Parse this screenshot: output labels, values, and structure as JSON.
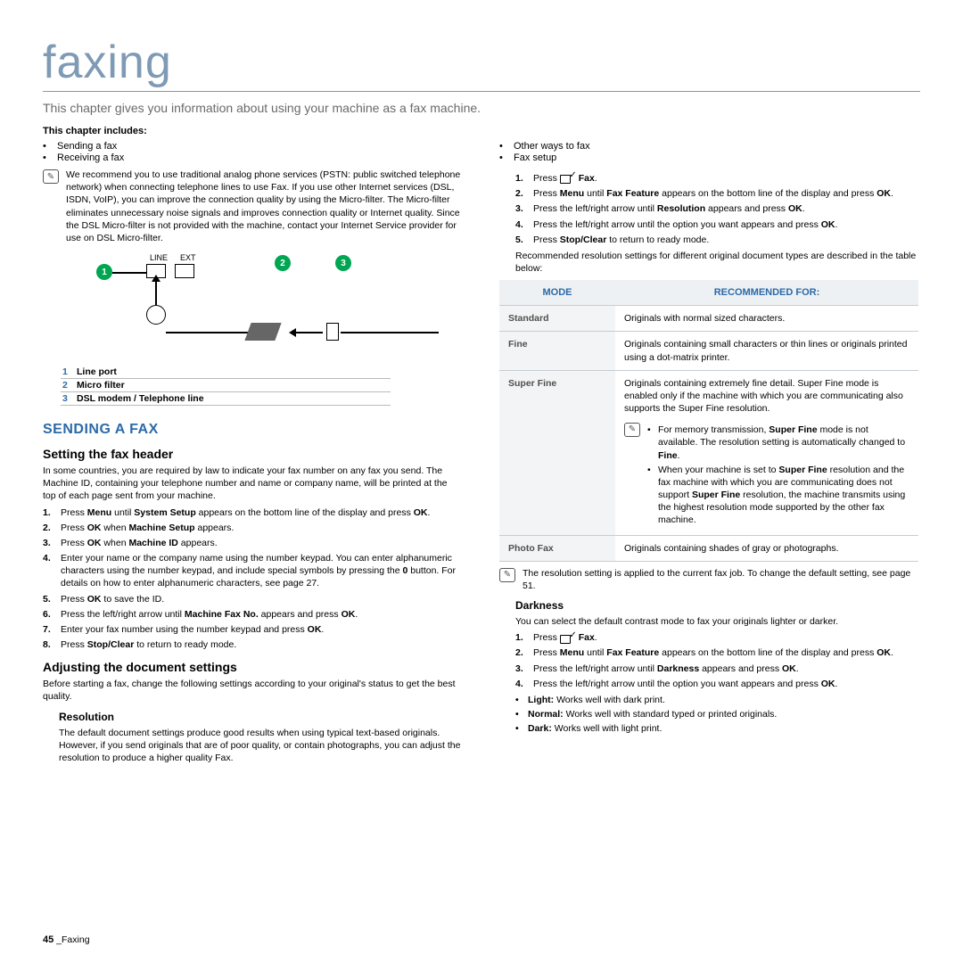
{
  "page": {
    "title": "faxing",
    "subtitle": "This chapter gives you information about using your machine as a fax machine.",
    "includes_head": "This chapter includes:"
  },
  "includes": {
    "left": [
      "Sending a fax",
      "Receiving a fax"
    ],
    "right": [
      "Other ways to fax",
      "Fax setup"
    ]
  },
  "intro_note": "We recommend you to use traditional analog phone services (PSTN: public switched telephone network) when connecting telephone lines to use Fax. If you use other Internet services (DSL, ISDN, VoIP), you can improve the connection quality by using the Micro-filter. The Micro-filter eliminates unnecessary noise signals and improves connection quality or Internet quality. Since the DSL Micro-filter is not provided with the machine, contact your Internet Service provider for use on DSL Micro-filter.",
  "diagram": {
    "line_label": "LINE",
    "ext_label": "EXT"
  },
  "legend": [
    {
      "n": "1",
      "t": "Line port"
    },
    {
      "n": "2",
      "t": "Micro filter"
    },
    {
      "n": "3",
      "t": "DSL modem / Telephone line"
    }
  ],
  "h_sending": "SENDING A FAX",
  "h_header": "Setting the fax header",
  "header_para": "In some countries, you are required by law to indicate your fax number on any fax you send. The Machine ID, containing your telephone number and name or company name, will be printed at the top of each page sent from your machine.",
  "header_steps": [
    "Press <b>Menu</b> until <b>System Setup</b> appears on the bottom line of the display and press <b>OK</b>.",
    "Press <b>OK</b> when <b>Machine Setup</b> appears.",
    "Press <b>OK</b> when <b>Machine ID</b> appears.",
    "Enter your name or the company name using the number keypad. You can enter alphanumeric characters using the number keypad, and include special symbols by pressing the <b>0</b> button. For details on how to enter alphanumeric characters, see page 27.",
    "Press <b>OK</b> to save the ID.",
    "Press the left/right arrow until <b>Machine Fax No.</b> appears and press <b>OK</b>.",
    "Enter your fax number using the number keypad and press <b>OK</b>.",
    "Press <b>Stop/Clear</b> to return to ready mode."
  ],
  "h_adjust": "Adjusting the document settings",
  "adjust_para": "Before starting a fax, change the following settings according to your original's status to get the best quality.",
  "h_res": "Resolution",
  "res_para": "The default document settings produce good results when using typical text-based originals. However, if you send originals that are of poor quality, or contain photographs, you can adjust the resolution to produce a higher quality Fax.",
  "res_steps": [
    "Press <span class=\"fax-icon\" data-name=\"fax-icon\" data-interactable=\"false\"></span> <b>Fax</b>.",
    "Press <b>Menu</b> until <b>Fax Feature</b> appears on the bottom line of the display and press <b>OK</b>.",
    "Press the left/right arrow until <b>Resolution</b> appears and press <b>OK</b>.",
    "Press the left/right arrow until the option you want appears and press <b>OK</b>.",
    "Press <b>Stop/Clear</b> to return to ready mode."
  ],
  "res_after": "Recommended resolution settings for different original document types are described in the table below:",
  "table": {
    "col1": "MODE",
    "col2": "RECOMMENDED FOR:",
    "rows": [
      {
        "mode": "Standard",
        "rec": "Originals with normal sized characters."
      },
      {
        "mode": "Fine",
        "rec": "Originals containing small characters or thin lines or originals printed using a dot-matrix printer."
      },
      {
        "mode": "Super Fine",
        "rec": "Originals containing extremely fine detail. Super Fine mode is enabled only if the machine with which you are communicating also supports the Super Fine resolution.",
        "note1": "For memory transmission, <b>Super Fine</b> mode is not available. The resolution setting is automatically changed to <b>Fine</b>.",
        "note2": "When your machine is set to <b>Super Fine</b> resolution and the fax machine with which you are communicating does not support <b>Super Fine</b> resolution, the machine transmits using the highest resolution mode supported by the other fax machine."
      },
      {
        "mode": "Photo Fax",
        "rec": "Originals containing shades of gray or photographs."
      }
    ]
  },
  "res_note": "The resolution setting is applied to the current fax job. To change the default setting, see page 51.",
  "h_dark": "Darkness",
  "dark_para": "You can select the default contrast mode to fax your originals lighter or darker.",
  "dark_steps": [
    "Press <span class=\"fax-icon\" data-name=\"fax-icon\" data-interactable=\"false\"></span> <b>Fax</b>.",
    "Press <b>Menu</b> until <b>Fax Feature</b> appears on the bottom line of the display and press <b>OK</b>.",
    "Press the left/right arrow until <b>Darkness</b> appears and press <b>OK</b>.",
    "Press the left/right arrow until the option you want appears and press <b>OK</b>."
  ],
  "dark_opts": [
    "<b>Light:</b>  Works well with dark print.",
    "<b>Normal:</b>  Works well with standard typed or printed originals.",
    "<b>Dark:</b>  Works well with light print."
  ],
  "footer": {
    "num": "45",
    "sep": "_",
    "title": "Faxing"
  }
}
